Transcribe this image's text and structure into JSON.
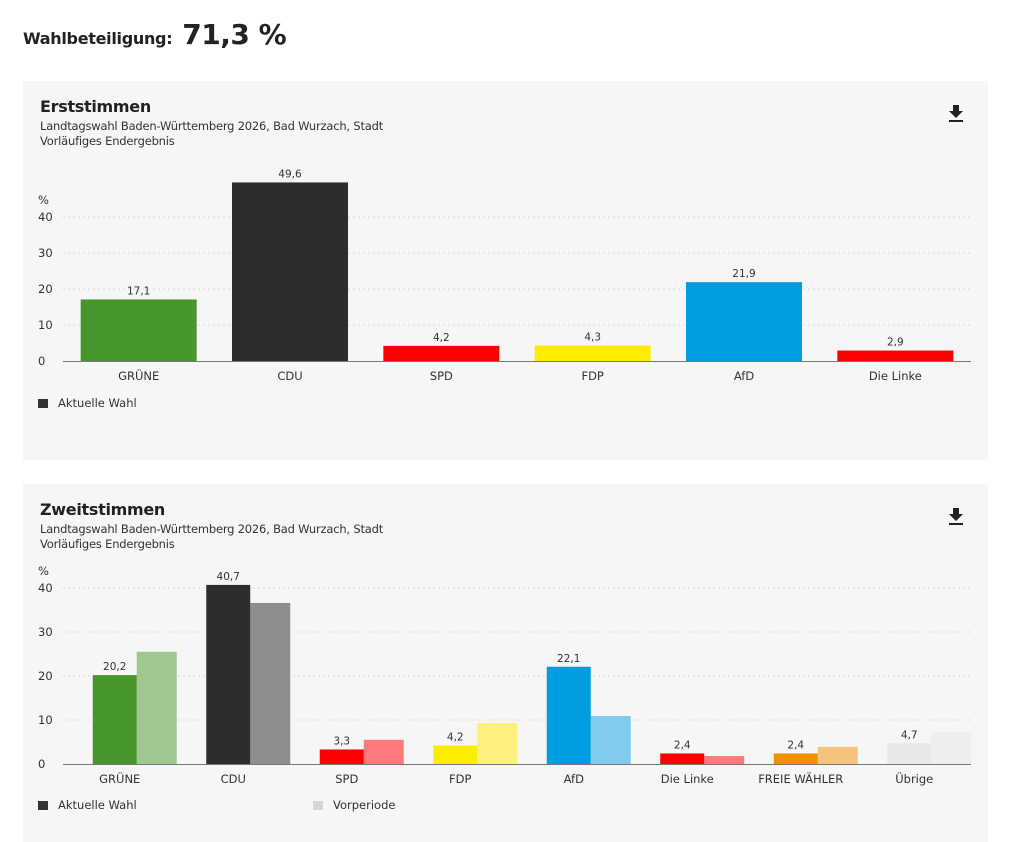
{
  "turnout": {
    "label": "Wahlbeteiligung:",
    "value": "71,3 %"
  },
  "download_icon": "download-icon",
  "chart_data": [
    {
      "type": "bar",
      "title": "Erststimmen",
      "subtitle": "Landtagswahl Baden-Württemberg 2026, Bad Wurzach, Stadt",
      "status": "Vorläufiges Endergebnis",
      "ylabel": "%",
      "ylim": [
        0,
        40
      ],
      "yticks": [
        0,
        10,
        20,
        30,
        40
      ],
      "grid": true,
      "categories": [
        "GRÜNE",
        "CDU",
        "SPD",
        "FDP",
        "AfD",
        "Die Linke"
      ],
      "colors": [
        "#46962b",
        "#2d2d2d",
        "#ff0000",
        "#ffed00",
        "#009ee0",
        "#ff0000"
      ],
      "series": [
        {
          "name": "Aktuelle Wahl",
          "values": [
            17.1,
            49.6,
            4.2,
            4.3,
            21.9,
            2.9
          ],
          "labels": [
            "17,1",
            "49,6",
            "4,2",
            "4,3",
            "21,9",
            "2,9"
          ]
        }
      ],
      "legend": [
        {
          "label": "Aktuelle Wahl",
          "color": "#333333"
        }
      ],
      "legend_position": "bottom-left"
    },
    {
      "type": "bar",
      "title": "Zweitstimmen",
      "subtitle": "Landtagswahl Baden-Württemberg 2026, Bad Wurzach, Stadt",
      "status": "Vorläufiges Endergebnis",
      "ylabel": "%",
      "ylim": [
        0,
        40
      ],
      "yticks": [
        0,
        10,
        20,
        30,
        40
      ],
      "grid": true,
      "categories": [
        "GRÜNE",
        "CDU",
        "SPD",
        "FDP",
        "AfD",
        "Die Linke",
        "FREIE WÄHLER",
        "Übrige"
      ],
      "colors": [
        "#46962b",
        "#2d2d2d",
        "#ff0000",
        "#ffed00",
        "#009ee0",
        "#ff0000",
        "#f29200",
        "#e8e8e8"
      ],
      "prev_colors": [
        "#9fc78f",
        "#8e8e8e",
        "#ff7b7b",
        "#fdf07c",
        "#80cbee",
        "#ff7b7b",
        "#f6c37d",
        "#eeeeee"
      ],
      "series": [
        {
          "name": "Aktuelle Wahl",
          "values": [
            20.2,
            40.7,
            3.3,
            4.2,
            22.1,
            2.4,
            2.4,
            4.7
          ],
          "labels": [
            "20,2",
            "40,7",
            "3,3",
            "4,2",
            "22,1",
            "2,4",
            "2,4",
            "4,7"
          ]
        },
        {
          "name": "Vorperiode",
          "values": [
            25.5,
            36.6,
            5.5,
            9.3,
            10.9,
            1.8,
            3.9,
            7.3
          ]
        }
      ],
      "legend": [
        {
          "label": "Aktuelle Wahl",
          "color": "#333333"
        },
        {
          "label": "Vorperiode",
          "color": "#d6d6d6"
        }
      ],
      "legend_position": "bottom-left"
    }
  ]
}
